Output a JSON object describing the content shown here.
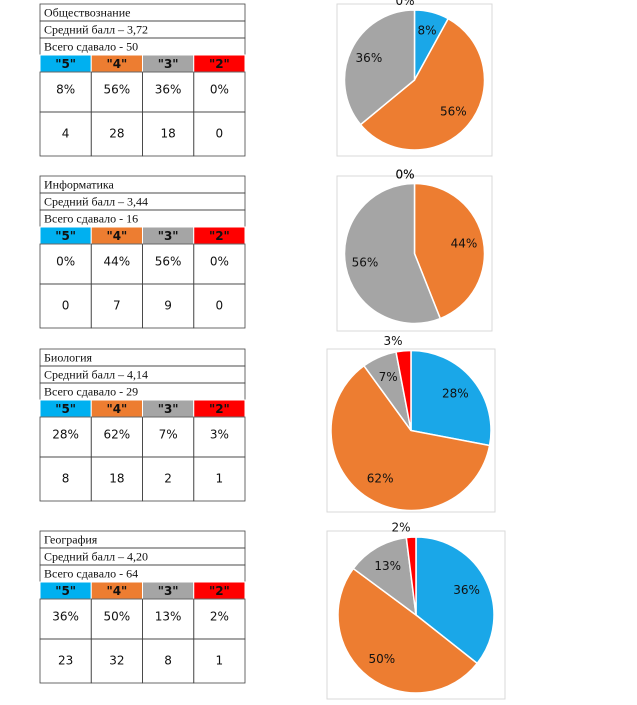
{
  "blocks": [
    {
      "title": "Обществознание",
      "average": "Средний балл – 3,72",
      "total": "Всего сдавало - 50",
      "counts": [
        4,
        28,
        18,
        0
      ],
      "chart": {
        "type": "pie",
        "values": [
          8,
          56,
          36,
          0
        ],
        "value_labels": [
          "8%",
          "56%",
          "36%",
          "0%"
        ]
      }
    },
    {
      "title": "Информатика",
      "average": "Средний балл – 3,44",
      "total": "Всего сдавало - 16",
      "counts": [
        0,
        7,
        9,
        0
      ],
      "chart": {
        "type": "pie",
        "values": [
          0,
          44,
          56,
          0
        ],
        "value_labels": [
          "0%",
          "44%",
          "56%",
          "0%"
        ]
      }
    },
    {
      "title": "Биология",
      "average": "Средний балл – 4,14",
      "total": "Всего сдавало - 29",
      "counts": [
        8,
        18,
        2,
        1
      ],
      "chart": {
        "type": "pie",
        "values": [
          28,
          62,
          7,
          3
        ],
        "value_labels": [
          "28%",
          "62%",
          "7%",
          "3%"
        ]
      }
    },
    {
      "title": "География",
      "average": "Средний балл – 4,20",
      "total": "Всего сдавало - 64",
      "counts": [
        23,
        32,
        8,
        1
      ],
      "chart": {
        "type": "pie",
        "values": [
          36,
          50,
          13,
          2
        ],
        "value_labels": [
          "36%",
          "50%",
          "13%",
          "2%"
        ]
      }
    }
  ],
  "grades": [
    "\"5\"",
    "\"4\"",
    "\"3\"",
    "\"2\""
  ],
  "grade_colors": [
    "#00b0f0",
    "#ed7d31",
    "#a5a5a5",
    "#ff0000"
  ],
  "slice_colors": [
    "#1aa7e8",
    "#ed7d31",
    "#a5a5a5",
    "#ff0000"
  ]
}
